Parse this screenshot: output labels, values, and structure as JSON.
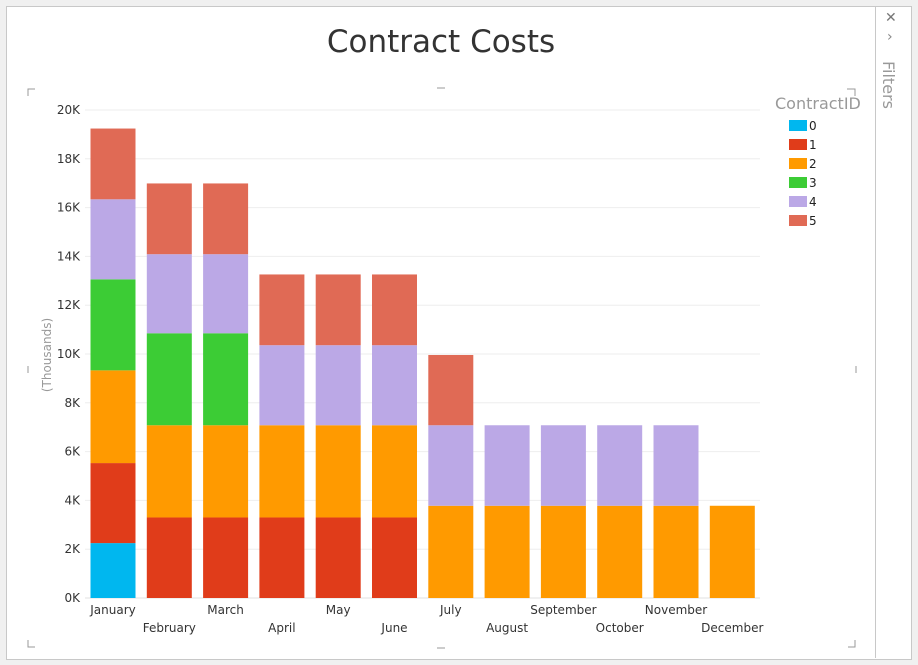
{
  "filters": {
    "close_icon": "close-icon",
    "expand_icon": "chevron-right-icon",
    "label": "Filters"
  },
  "chart_data": {
    "type": "bar",
    "stacked": true,
    "title": "Contract Costs",
    "xlabel": "",
    "ylabel": "(Thousands)",
    "ylim": [
      0,
      20000
    ],
    "yticks": [
      "0K",
      "2K",
      "4K",
      "6K",
      "8K",
      "10K",
      "12K",
      "14K",
      "16K",
      "18K",
      "20K"
    ],
    "grid": true,
    "legend_title": "ContractID",
    "legend_position": "right",
    "categories": [
      "January",
      "February",
      "March",
      "April",
      "May",
      "June",
      "July",
      "August",
      "September",
      "October",
      "November",
      "December"
    ],
    "series": [
      {
        "name": "0",
        "color": "#00b7ef",
        "values": [
          2250,
          0,
          0,
          0,
          0,
          0,
          0,
          0,
          0,
          0,
          0,
          0
        ]
      },
      {
        "name": "1",
        "color": "#e03c1a",
        "values": [
          3280,
          3300,
          3300,
          3300,
          3300,
          3300,
          0,
          0,
          0,
          0,
          0,
          0
        ]
      },
      {
        "name": "2",
        "color": "#ff9a00",
        "values": [
          3800,
          3780,
          3780,
          3780,
          3780,
          3780,
          3780,
          3780,
          3780,
          3780,
          3780,
          3780
        ]
      },
      {
        "name": "3",
        "color": "#3ccc35",
        "values": [
          3730,
          3770,
          3770,
          0,
          0,
          0,
          0,
          0,
          0,
          0,
          0,
          0
        ]
      },
      {
        "name": "4",
        "color": "#bba8e6",
        "values": [
          3280,
          3240,
          3240,
          3280,
          3280,
          3280,
          3300,
          3300,
          3300,
          3300,
          3300,
          0
        ]
      },
      {
        "name": "5",
        "color": "#e06a55",
        "values": [
          2900,
          2900,
          2900,
          2900,
          2900,
          2900,
          2880,
          0,
          0,
          0,
          0,
          0
        ]
      }
    ]
  }
}
